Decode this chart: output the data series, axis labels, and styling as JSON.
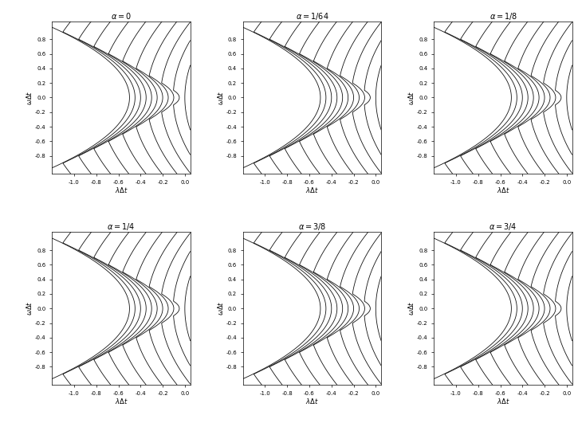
{
  "alphas": [
    0.0,
    0.015625,
    0.125,
    0.25,
    0.375,
    0.75
  ],
  "alpha_labels": [
    "a=0",
    "a=1/64",
    "a=1/8",
    "a=1/4",
    "a=3/8",
    "a=3/4"
  ],
  "xlim": [
    -1.2,
    0.05
  ],
  "ylim": [
    -1.05,
    1.05
  ],
  "n_curves": 20,
  "background": "#ffffff",
  "linecolor": "#111111",
  "linewidth": 0.6,
  "figsize": [
    7.25,
    5.31
  ],
  "dpi": 100,
  "xticks": [
    -1.0,
    -0.8,
    -0.6,
    -0.4,
    -0.2,
    0.0
  ],
  "yticks": [
    -0.8,
    -0.6,
    -0.4,
    -0.2,
    0.0,
    0.2,
    0.4,
    0.6,
    0.8
  ],
  "n_theta": 2000,
  "r_values_start": 0.05,
  "r_values_end": 2.5
}
